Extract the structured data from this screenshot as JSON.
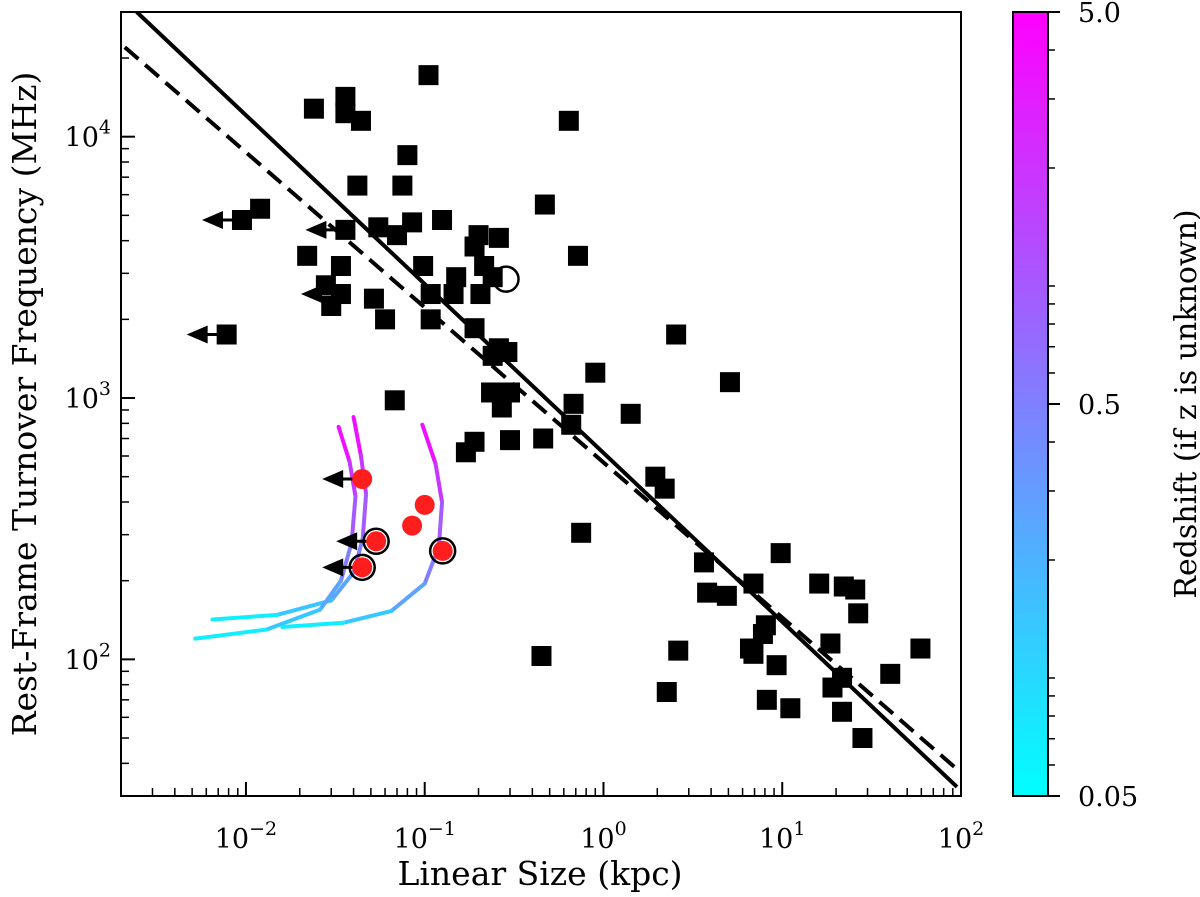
{
  "chart_data": {
    "type": "scatter",
    "x_scale": "log",
    "y_scale": "log",
    "xlabel": "Linear Size (kpc)",
    "ylabel": "Rest-Frame Turnover Frequency (MHz)",
    "xlim": [
      0.002,
      100
    ],
    "ylim": [
      30,
      30000
    ],
    "x_ticks": [
      {
        "value": 0.01,
        "base": "10",
        "exp": "−2"
      },
      {
        "value": 0.1,
        "base": "10",
        "exp": "−1"
      },
      {
        "value": 1,
        "base": "10",
        "exp": "0"
      },
      {
        "value": 10,
        "base": "10",
        "exp": "1"
      },
      {
        "value": 100,
        "base": "10",
        "exp": "2"
      }
    ],
    "y_ticks": [
      {
        "value": 100,
        "base": "10",
        "exp": "2"
      },
      {
        "value": 1000,
        "base": "10",
        "exp": "3"
      },
      {
        "value": 10000,
        "base": "10",
        "exp": "4"
      }
    ],
    "fit_lines": [
      {
        "name": "solid fit",
        "style": "solid",
        "points": [
          [
            0.00245,
            30000
          ],
          [
            95,
            32.5
          ]
        ]
      },
      {
        "name": "dashed fit",
        "style": "dashed",
        "points": [
          [
            0.0021,
            22000
          ],
          [
            95,
            38
          ]
        ]
      }
    ],
    "series": [
      {
        "name": "known redshift sources",
        "marker": "square",
        "color": "#000000",
        "points": [
          [
            0.105,
            17200
          ],
          [
            0.64,
            11500
          ],
          [
            0.024,
            12800
          ],
          [
            0.036,
            14200
          ],
          [
            0.036,
            12300
          ],
          [
            0.044,
            11500
          ],
          [
            0.08,
            8500
          ],
          [
            0.042,
            6500
          ],
          [
            0.075,
            6500
          ],
          [
            0.47,
            5500
          ],
          [
            0.012,
            5300
          ],
          [
            0.0095,
            4800
          ],
          [
            0.055,
            4500
          ],
          [
            0.085,
            4700
          ],
          [
            0.125,
            4800
          ],
          [
            0.036,
            4400
          ],
          [
            0.07,
            4200
          ],
          [
            0.2,
            4200
          ],
          [
            0.26,
            4100
          ],
          [
            0.19,
            3800
          ],
          [
            0.022,
            3500
          ],
          [
            0.72,
            3500
          ],
          [
            0.034,
            3200
          ],
          [
            0.098,
            3200
          ],
          [
            0.215,
            3200
          ],
          [
            0.24,
            2900
          ],
          [
            0.15,
            2900
          ],
          [
            0.028,
            2700
          ],
          [
            0.034,
            2500
          ],
          [
            0.052,
            2400
          ],
          [
            0.108,
            2500
          ],
          [
            0.145,
            2500
          ],
          [
            0.205,
            2500
          ],
          [
            0.03,
            2250
          ],
          [
            0.06,
            2000
          ],
          [
            0.108,
            2000
          ],
          [
            0.19,
            1850
          ],
          [
            0.26,
            1550
          ],
          [
            0.29,
            1500
          ],
          [
            0.24,
            1450
          ],
          [
            0.0078,
            1750
          ],
          [
            2.55,
            1750
          ],
          [
            0.068,
            980
          ],
          [
            0.235,
            1050
          ],
          [
            0.3,
            1050
          ],
          [
            0.27,
            920
          ],
          [
            0.68,
            950
          ],
          [
            0.9,
            1250
          ],
          [
            1.42,
            870
          ],
          [
            5.1,
            1150
          ],
          [
            0.19,
            680
          ],
          [
            0.17,
            620
          ],
          [
            0.3,
            690
          ],
          [
            0.46,
            700
          ],
          [
            0.66,
            790
          ],
          [
            1.95,
            500
          ],
          [
            2.2,
            450
          ],
          [
            0.75,
            305
          ],
          [
            3.65,
            235
          ],
          [
            3.8,
            180
          ],
          [
            4.9,
            175
          ],
          [
            6.9,
            195
          ],
          [
            9.8,
            255
          ],
          [
            8.1,
            135
          ],
          [
            7.8,
            125
          ],
          [
            6.6,
            110
          ],
          [
            6.9,
            105
          ],
          [
            9.3,
            95
          ],
          [
            8.2,
            70
          ],
          [
            11.1,
            65
          ],
          [
            16.1,
            195
          ],
          [
            22.1,
            190
          ],
          [
            25.6,
            185
          ],
          [
            26.6,
            150
          ],
          [
            18.6,
            115
          ],
          [
            19.1,
            78
          ],
          [
            21.6,
            85
          ],
          [
            21.6,
            63
          ],
          [
            28.1,
            50
          ],
          [
            40.2,
            88
          ],
          [
            59.3,
            110
          ],
          [
            2.62,
            108
          ],
          [
            2.26,
            75
          ],
          [
            0.45,
            103
          ]
        ]
      },
      {
        "name": "unknown redshift sources",
        "marker": "circle",
        "color": "#ff1e1e",
        "points": [
          [
            0.0447,
            490
          ],
          [
            0.1,
            390
          ],
          [
            0.085,
            325
          ],
          [
            0.0535,
            283
          ],
          [
            0.126,
            260
          ],
          [
            0.0447,
            225
          ]
        ]
      }
    ],
    "upper_limit_arrows": [
      [
        0.0095,
        4800
      ],
      [
        0.036,
        4400
      ],
      [
        0.034,
        2500
      ],
      [
        0.0078,
        1750
      ],
      [
        0.0447,
        490
      ],
      [
        0.0535,
        283
      ],
      [
        0.0447,
        225
      ]
    ],
    "open_circles": [
      [
        0.285,
        2850
      ],
      [
        0.0535,
        283
      ],
      [
        0.126,
        260
      ],
      [
        0.0447,
        225
      ]
    ],
    "redshift_tracks": [
      {
        "name": "track 1",
        "points": [
          [
            0.04,
            845
          ],
          [
            0.044,
            600
          ],
          [
            0.047,
            430
          ],
          [
            0.045,
            290
          ],
          [
            0.04,
            215
          ],
          [
            0.03,
            168
          ],
          [
            0.015,
            148
          ],
          [
            0.0065,
            142
          ]
        ]
      },
      {
        "name": "track 2",
        "points": [
          [
            0.033,
            775
          ],
          [
            0.038,
            570
          ],
          [
            0.041,
            420
          ],
          [
            0.039,
            280
          ],
          [
            0.034,
            200
          ],
          [
            0.026,
            155
          ],
          [
            0.013,
            130
          ],
          [
            0.0052,
            120
          ]
        ]
      },
      {
        "name": "track 3",
        "points": [
          [
            0.097,
            790
          ],
          [
            0.115,
            560
          ],
          [
            0.125,
            400
          ],
          [
            0.12,
            270
          ],
          [
            0.1,
            195
          ],
          [
            0.065,
            153
          ],
          [
            0.035,
            138
          ],
          [
            0.016,
            133
          ]
        ]
      }
    ],
    "colorbar": {
      "label": "Redshift (if z is unknown)",
      "min_label": "0.05",
      "mid_label": "0.5",
      "max_label": "5.0",
      "min_value": 0.05,
      "max_value": 5.0,
      "color_low": "#00ffff",
      "color_high": "#ff00ff"
    }
  }
}
